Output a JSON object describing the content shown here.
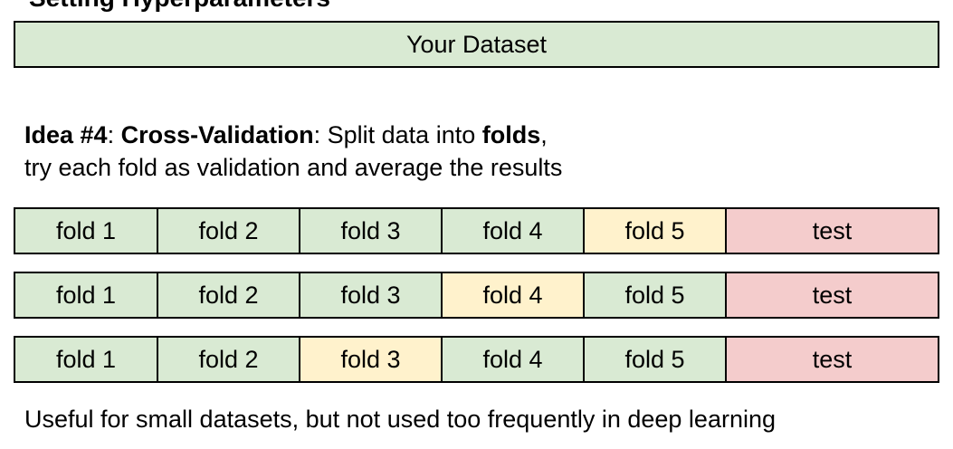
{
  "clipped_heading": "Setting Hyperparameters",
  "dataset_label": "Your Dataset",
  "idea": {
    "label": "Idea #4",
    "sep1": ": ",
    "method": "Cross-Validation",
    "sep2": ": Split data into ",
    "folds_word": "folds",
    "sep3": ",",
    "line2": "try each fold as validation and average the results"
  },
  "rows": [
    {
      "cells": [
        "fold 1",
        "fold 2",
        "fold 3",
        "fold 4",
        "fold 5",
        "test"
      ],
      "validation_fold": "fold 5"
    },
    {
      "cells": [
        "fold 1",
        "fold 2",
        "fold 3",
        "fold 4",
        "fold 5",
        "test"
      ],
      "validation_fold": "fold 4"
    },
    {
      "cells": [
        "fold 1",
        "fold 2",
        "fold 3",
        "fold 4",
        "fold 5",
        "test"
      ],
      "validation_fold": "fold 3"
    }
  ],
  "footer": "Useful for small datasets, but not used too frequently in deep learning",
  "colors": {
    "train": "#d9ead3",
    "validation": "#fff2cc",
    "test": "#f4cccc"
  }
}
